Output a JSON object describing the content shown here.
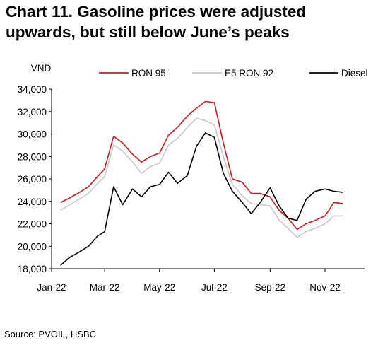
{
  "title": "Chart 11. Gasoline prices were adjusted upwards, but still below June’s peaks",
  "source": "Source: PVOIL, HSBC",
  "chart_data": {
    "type": "line",
    "title": "Chart 11. Gasoline prices were adjusted upwards, but still below June’s peaks",
    "ylabel": "VND",
    "xlabel": "",
    "ylim": [
      18000,
      34000
    ],
    "yticks": [
      18000,
      20000,
      22000,
      24000,
      26000,
      28000,
      30000,
      32000,
      34000
    ],
    "ytick_labels": [
      "18,000",
      "20,000",
      "22,000",
      "24,000",
      "26,000",
      "28,000",
      "30,000",
      "32,000",
      "34,000"
    ],
    "xlim": [
      "2022-01-01",
      "2022-12-15"
    ],
    "xticks": [
      "2022-01-01",
      "2022-03-01",
      "2022-05-01",
      "2022-07-01",
      "2022-09-01",
      "2022-11-01"
    ],
    "xtick_labels": [
      "Jan-22",
      "Mar-22",
      "May-22",
      "Jul-22",
      "Sep-22",
      "Nov-22"
    ],
    "grid": false,
    "legend_position": "top",
    "x": [
      "2022-01-11",
      "2022-01-21",
      "2022-02-01",
      "2022-02-11",
      "2022-02-21",
      "2022-03-01",
      "2022-03-11",
      "2022-03-21",
      "2022-04-01",
      "2022-04-11",
      "2022-04-21",
      "2022-05-01",
      "2022-05-11",
      "2022-05-21",
      "2022-06-01",
      "2022-06-11",
      "2022-06-21",
      "2022-07-01",
      "2022-07-11",
      "2022-07-21",
      "2022-08-01",
      "2022-08-11",
      "2022-08-21",
      "2022-09-01",
      "2022-09-11",
      "2022-09-21",
      "2022-10-01",
      "2022-10-11",
      "2022-10-21",
      "2022-11-01",
      "2022-11-11",
      "2022-11-21",
      "2022-12-01",
      "2022-12-11"
    ],
    "series": [
      {
        "name": "RON 95",
        "color": "#d7141e",
        "values": [
          23900,
          24300,
          24800,
          25300,
          26200,
          26900,
          29800,
          29200,
          28200,
          27500,
          28000,
          28300,
          29900,
          30600,
          31600,
          32300,
          32900,
          32800,
          29200,
          26000,
          25700,
          24700,
          24700,
          24400,
          23200,
          22500,
          21500,
          22000,
          22300,
          22700,
          23900,
          23800,
          null,
          null
        ]
      },
      {
        "name": "E5 RON 92",
        "color": "#c8c8c8",
        "values": [
          23200,
          23700,
          24200,
          24700,
          25600,
          26200,
          29000,
          28500,
          27500,
          26500,
          27100,
          27400,
          29000,
          29600,
          30600,
          31400,
          31200,
          30800,
          28000,
          25500,
          24500,
          23800,
          23700,
          23600,
          22300,
          21600,
          20800,
          21300,
          21600,
          22000,
          22700,
          22700,
          null,
          null
        ]
      },
      {
        "name": "Diesel",
        "color": "#000000",
        "values": [
          18300,
          19000,
          19500,
          20000,
          20900,
          21300,
          25300,
          23700,
          25100,
          24400,
          25300,
          25500,
          26600,
          25600,
          26300,
          28900,
          30100,
          29700,
          26500,
          24900,
          23900,
          22900,
          23900,
          25200,
          23600,
          22500,
          22300,
          24200,
          24900,
          25100,
          24900,
          24800,
          null,
          null
        ]
      }
    ]
  }
}
